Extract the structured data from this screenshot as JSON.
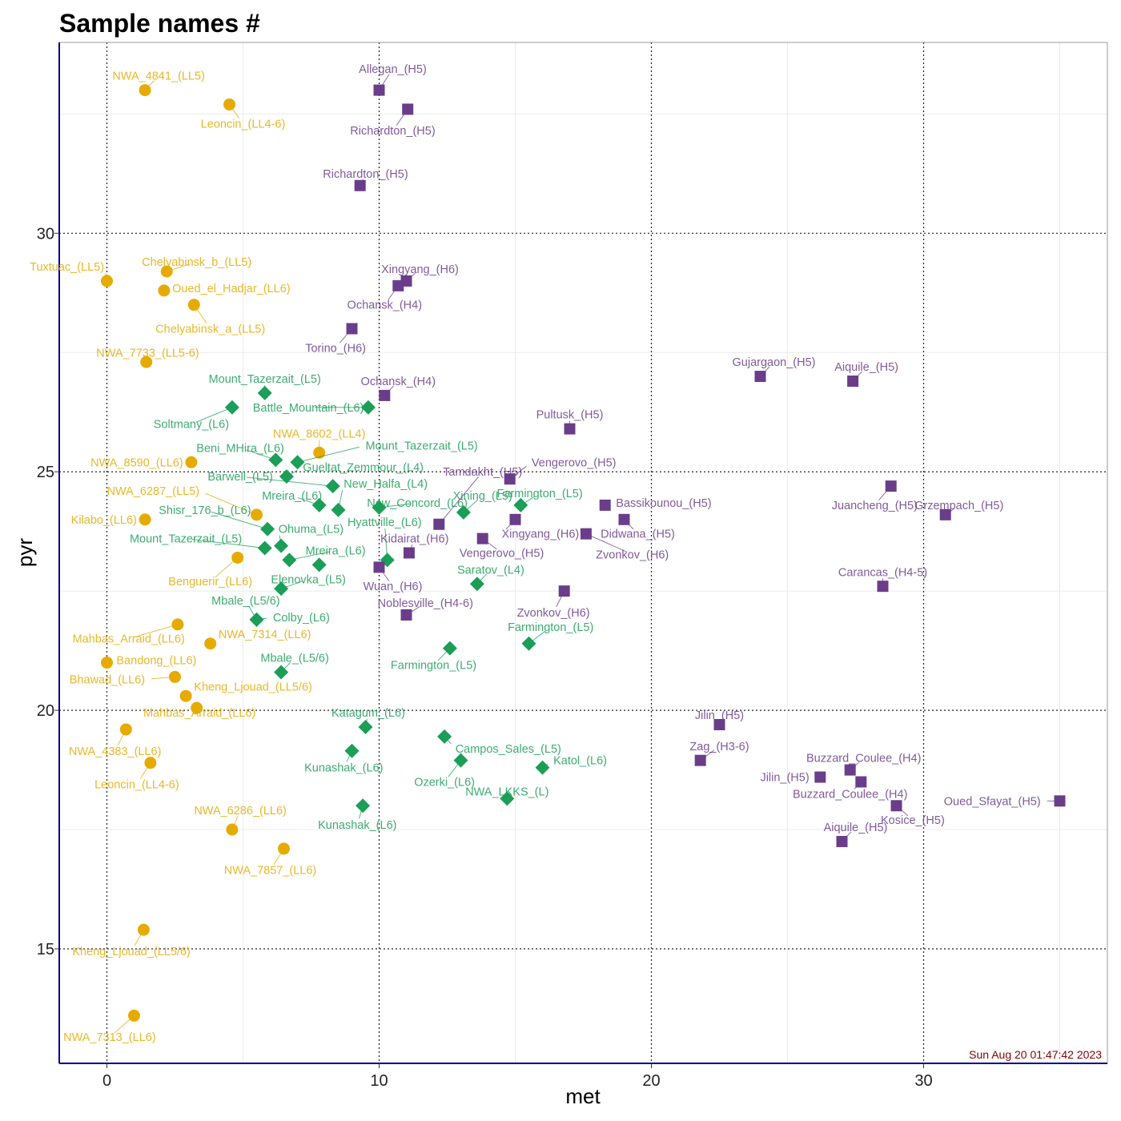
{
  "chart_data": {
    "type": "scatter",
    "title": "Sample names #",
    "xlabel": "met",
    "ylabel": "pyr",
    "xlim": [
      -1.75,
      36.75
    ],
    "ylim": [
      12.6,
      34.0
    ],
    "xticks": [
      0,
      10,
      20,
      30
    ],
    "yticks": [
      15,
      20,
      25,
      30
    ],
    "grid": true,
    "timestamp": "Sun Aug 20 01:47:42 2023",
    "colors": {
      "LL": "#e6ab02",
      "L": "#1b9e57",
      "H": "#6a3d8a",
      "axis": "#00008b"
    },
    "series": [
      {
        "group": "LL",
        "marker": "circle",
        "points": [
          {
            "label": "NWA_4841_(LL5)",
            "x": 1.4,
            "y": 33.0,
            "lx": 1.9,
            "ly": 33.3,
            "ha": "middle"
          },
          {
            "label": "Leoncin_(LL4-6)",
            "x": 4.5,
            "y": 32.7,
            "lx": 5.0,
            "ly": 32.3,
            "ha": "middle"
          },
          {
            "label": "Tuxtuac_(LL5)",
            "x": 0.0,
            "y": 29.0,
            "lx": -0.1,
            "ly": 29.3,
            "ha": "end"
          },
          {
            "label": "Chelyabinsk_b_(LL5)",
            "x": 2.2,
            "y": 29.2,
            "lx": 3.3,
            "ly": 29.4,
            "ha": "middle"
          },
          {
            "label": "Oued_el_Hadjar_(LL6)",
            "x": 2.1,
            "y": 28.8,
            "lx": 2.4,
            "ly": 28.85,
            "ha": "start"
          },
          {
            "label": "Chelyabinsk_a_(LL5)",
            "x": 3.2,
            "y": 28.5,
            "lx": 3.8,
            "ly": 28.0,
            "ha": "middle"
          },
          {
            "label": "NWA_7733_(LL5-6)",
            "x": 1.45,
            "y": 27.3,
            "lx": 1.5,
            "ly": 27.5,
            "ha": "middle"
          },
          {
            "label": "NWA_8602_(LL4)",
            "x": 7.8,
            "y": 25.4,
            "lx": 7.8,
            "ly": 25.8,
            "ha": "middle"
          },
          {
            "label": "NWA_8590_(LL6)",
            "x": 3.1,
            "y": 25.2,
            "lx": 2.8,
            "ly": 25.2,
            "ha": "end"
          },
          {
            "label": "NWA_6287_(LL5)",
            "x": 5.5,
            "y": 24.1,
            "lx": 3.4,
            "ly": 24.6,
            "ha": "end"
          },
          {
            "label": "Kilabo_(LL6)",
            "x": 1.4,
            "y": 24.0,
            "lx": 1.1,
            "ly": 24.0,
            "ha": "end"
          },
          {
            "label": "Benguerir_(LL6)",
            "x": 4.8,
            "y": 23.2,
            "lx": 3.8,
            "ly": 22.7,
            "ha": "middle"
          },
          {
            "label": "Mahbas_Arraid_(LL6)",
            "x": 2.6,
            "y": 21.8,
            "lx": 0.8,
            "ly": 21.5,
            "ha": "middle"
          },
          {
            "label": "NWA_7314_(LL6)",
            "x": 3.8,
            "y": 21.4,
            "lx": 4.1,
            "ly": 21.6,
            "ha": "start"
          },
          {
            "label": "Bandong_(LL6)",
            "x": 0.0,
            "y": 21.0,
            "lx": 0.35,
            "ly": 21.05,
            "ha": "start"
          },
          {
            "label": "Bhawad_(LL6)",
            "x": 2.5,
            "y": 20.7,
            "lx": 1.4,
            "ly": 20.65,
            "ha": "end"
          },
          {
            "label": "Kheng_Ljouad_(LL5/6)",
            "x": 2.9,
            "y": 20.3,
            "lx": 3.2,
            "ly": 20.5,
            "ha": "start"
          },
          {
            "label": "Mahbas_Arraid_(LL6)",
            "x": 3.3,
            "y": 20.05,
            "lx": 3.4,
            "ly": 19.95,
            "ha": "middle"
          },
          {
            "label": "NWA_4383_(LL6)",
            "x": 0.7,
            "y": 19.6,
            "lx": 0.3,
            "ly": 19.15,
            "ha": "middle"
          },
          {
            "label": "Leoncin_(LL4-6)",
            "x": 1.6,
            "y": 18.9,
            "lx": 1.1,
            "ly": 18.45,
            "ha": "middle"
          },
          {
            "label": "NWA_6286_(LL6)",
            "x": 4.6,
            "y": 17.5,
            "lx": 4.9,
            "ly": 17.9,
            "ha": "middle"
          },
          {
            "label": "NWA_7857_(LL6)",
            "x": 6.5,
            "y": 17.1,
            "lx": 6.0,
            "ly": 16.65,
            "ha": "middle"
          },
          {
            "label": "Kheng_Ljouad_(LL5/6)",
            "x": 1.35,
            "y": 15.4,
            "lx": 0.9,
            "ly": 14.95,
            "ha": "middle"
          },
          {
            "label": "NWA_7313_(LL6)",
            "x": 1.0,
            "y": 13.6,
            "lx": 0.1,
            "ly": 13.15,
            "ha": "middle"
          }
        ]
      },
      {
        "group": "L",
        "marker": "diamond",
        "points": [
          {
            "label": "Mount_Tazerzait_(L5)",
            "x": 5.8,
            "y": 26.65,
            "lx": 5.8,
            "ly": 26.95,
            "ha": "middle"
          },
          {
            "label": "Soltmany_(L6)",
            "x": 4.6,
            "y": 26.35,
            "lx": 3.1,
            "ly": 26.0,
            "ha": "middle"
          },
          {
            "label": "Battle_Mountain_(L6)",
            "x": 9.6,
            "y": 26.35,
            "lx": 7.4,
            "ly": 26.35,
            "ha": "middle"
          },
          {
            "label": "Mount_Tazerzait_(L5)",
            "x": 7.0,
            "y": 25.2,
            "lx": 9.5,
            "ly": 25.55,
            "ha": "start"
          },
          {
            "label": "Beni_MHira_(L6)",
            "x": 6.2,
            "y": 25.25,
            "lx": 4.9,
            "ly": 25.5,
            "ha": "middle"
          },
          {
            "label": "Gueltat_Zemmour_(L4)",
            "x": 6.6,
            "y": 24.9,
            "lx": 7.2,
            "ly": 25.1,
            "ha": "start"
          },
          {
            "label": "Barwell_(L5)",
            "x": 8.3,
            "y": 24.7,
            "lx": 4.9,
            "ly": 24.9,
            "ha": "middle"
          },
          {
            "label": "New_Halfa_(L4)",
            "x": 8.5,
            "y": 24.2,
            "lx": 8.7,
            "ly": 24.75,
            "ha": "start"
          },
          {
            "label": "Mreira_(L6)",
            "x": 7.8,
            "y": 24.3,
            "lx": 6.8,
            "ly": 24.5,
            "ha": "middle"
          },
          {
            "label": "New_Concord_(L6)",
            "x": 10.0,
            "y": 24.25,
            "lx": 11.4,
            "ly": 24.35,
            "ha": "middle"
          },
          {
            "label": "Xining_(L5)",
            "x": 13.1,
            "y": 24.15,
            "lx": 13.8,
            "ly": 24.5,
            "ha": "middle"
          },
          {
            "label": "Farmington_(L5)",
            "x": 15.2,
            "y": 24.3,
            "lx": 15.9,
            "ly": 24.55,
            "ha": "middle"
          },
          {
            "label": "Shisr_176_b_(L6)",
            "x": 5.9,
            "y": 23.8,
            "lx": 3.6,
            "ly": 24.2,
            "ha": "middle"
          },
          {
            "label": "Ohuma_(L5)",
            "x": 6.4,
            "y": 23.45,
            "lx": 6.3,
            "ly": 23.8,
            "ha": "start"
          },
          {
            "label": "Hyattville_(L6)",
            "x": 10.3,
            "y": 23.15,
            "lx": 10.2,
            "ly": 23.95,
            "ha": "middle"
          },
          {
            "label": "Mount_Tazerzait_(L5)",
            "x": 5.8,
            "y": 23.4,
            "lx": 2.9,
            "ly": 23.6,
            "ha": "middle"
          },
          {
            "label": "Mreira_(L6)",
            "x": 6.7,
            "y": 23.15,
            "lx": 8.4,
            "ly": 23.35,
            "ha": "middle"
          },
          {
            "label": "Mreira_(L6)",
            "x": 7.8,
            "y": 23.05,
            "lx": 7.8,
            "ly": 23.05,
            "ha": "none"
          },
          {
            "label": "Elenovka_(L5)",
            "x": 6.4,
            "y": 22.55,
            "lx": 7.4,
            "ly": 22.75,
            "ha": "middle"
          },
          {
            "label": "Saratov_(L4)",
            "x": 13.6,
            "y": 22.65,
            "lx": 14.1,
            "ly": 22.95,
            "ha": "middle"
          },
          {
            "label": "Mbale_(L5/6)",
            "x": 5.5,
            "y": 21.9,
            "lx": 5.1,
            "ly": 22.3,
            "ha": "middle"
          },
          {
            "label": "Colby_(L6)",
            "x": 5.5,
            "y": 21.9,
            "lx": 6.1,
            "ly": 21.95,
            "ha": "start"
          },
          {
            "label": "Farmington_(L5)",
            "x": 15.5,
            "y": 21.4,
            "lx": 16.3,
            "ly": 21.75,
            "ha": "middle"
          },
          {
            "label": "Farmington_(L5)",
            "x": 12.6,
            "y": 21.3,
            "lx": 12.0,
            "ly": 20.95,
            "ha": "middle"
          },
          {
            "label": "Mbale_(L5/6)",
            "x": 6.4,
            "y": 20.8,
            "lx": 6.9,
            "ly": 21.1,
            "ha": "middle"
          },
          {
            "label": "Katagum_(L6)",
            "x": 9.5,
            "y": 19.65,
            "lx": 9.6,
            "ly": 19.95,
            "ha": "middle"
          },
          {
            "label": "Kunashak_(L6)",
            "x": 9.0,
            "y": 19.15,
            "lx": 8.7,
            "ly": 18.8,
            "ha": "middle"
          },
          {
            "label": "Campos_Sales_(L5)",
            "x": 12.4,
            "y": 19.45,
            "lx": 12.8,
            "ly": 19.2,
            "ha": "start"
          },
          {
            "label": "Ozerki_(L6)",
            "x": 13.0,
            "y": 18.95,
            "lx": 12.4,
            "ly": 18.5,
            "ha": "middle"
          },
          {
            "label": "Katol_(L6)",
            "x": 16.0,
            "y": 18.8,
            "lx": 16.4,
            "ly": 18.95,
            "ha": "start"
          },
          {
            "label": "NWA_LKKS_(L)",
            "x": 14.7,
            "y": 18.15,
            "lx": 14.7,
            "ly": 18.3,
            "ha": "middle"
          },
          {
            "label": "Kunashak_(L6)",
            "x": 9.4,
            "y": 18.0,
            "lx": 9.2,
            "ly": 17.6,
            "ha": "middle"
          }
        ]
      },
      {
        "group": "H",
        "marker": "square",
        "points": [
          {
            "label": "Allegan_(H5)",
            "x": 10.0,
            "y": 33.0,
            "lx": 10.5,
            "ly": 33.45,
            "ha": "middle"
          },
          {
            "label": "Richardton_(H5)",
            "x": 11.05,
            "y": 32.6,
            "lx": 10.5,
            "ly": 32.15,
            "ha": "middle"
          },
          {
            "label": "Richardton_(H5)",
            "x": 9.3,
            "y": 31.0,
            "lx": 9.5,
            "ly": 31.25,
            "ha": "middle"
          },
          {
            "label": "Xingyang_(H6)",
            "x": 11.0,
            "y": 29.0,
            "lx": 11.5,
            "ly": 29.25,
            "ha": "middle"
          },
          {
            "label": "Ochansk_(H4)",
            "x": 10.7,
            "y": 28.9,
            "lx": 10.2,
            "ly": 28.5,
            "ha": "middle"
          },
          {
            "label": "Torino_(H6)",
            "x": 9.0,
            "y": 28.0,
            "lx": 8.4,
            "ly": 27.6,
            "ha": "middle"
          },
          {
            "label": "Ochansk_(H4)",
            "x": 10.2,
            "y": 26.6,
            "lx": 10.7,
            "ly": 26.9,
            "ha": "middle"
          },
          {
            "label": "Gujargaon_(H5)",
            "x": 24.0,
            "y": 27.0,
            "lx": 24.5,
            "ly": 27.3,
            "ha": "middle"
          },
          {
            "label": "Aiquile_(H5)",
            "x": 27.4,
            "y": 26.9,
            "lx": 27.9,
            "ly": 27.2,
            "ha": "middle"
          },
          {
            "label": "Pultusk_(H5)",
            "x": 17.0,
            "y": 25.9,
            "lx": 17.0,
            "ly": 26.2,
            "ha": "middle"
          },
          {
            "label": "Vengerovo_(H5)",
            "x": 14.8,
            "y": 24.85,
            "lx": 15.6,
            "ly": 25.2,
            "ha": "start"
          },
          {
            "label": "Tamdakht_(H5)",
            "x": 12.2,
            "y": 23.9,
            "lx": 13.8,
            "ly": 25.0,
            "ha": "middle"
          },
          {
            "label": "Juancheng_(H5)",
            "x": 28.8,
            "y": 24.7,
            "lx": 28.2,
            "ly": 24.3,
            "ha": "middle"
          },
          {
            "label": "Grzempach_(H5)",
            "x": 30.8,
            "y": 24.1,
            "lx": 31.3,
            "ly": 24.3,
            "ha": "middle"
          },
          {
            "label": "Bassikounou_(H5)",
            "x": 18.3,
            "y": 24.3,
            "lx": 18.7,
            "ly": 24.35,
            "ha": "start"
          },
          {
            "label": "Kidairat_(H6)",
            "x": 11.1,
            "y": 23.3,
            "lx": 11.3,
            "ly": 23.6,
            "ha": "middle"
          },
          {
            "label": "Xingyang_(H6)",
            "x": 15.0,
            "y": 24.0,
            "lx": 14.5,
            "ly": 23.7,
            "ha": "start"
          },
          {
            "label": "Vengerovo_(H5)",
            "x": 13.8,
            "y": 23.6,
            "lx": 14.5,
            "ly": 23.3,
            "ha": "middle"
          },
          {
            "label": "Didwana_(H5)",
            "x": 19.0,
            "y": 24.0,
            "lx": 19.5,
            "ly": 23.7,
            "ha": "middle"
          },
          {
            "label": "Zvonkov_(H6)",
            "x": 17.6,
            "y": 23.7,
            "lx": 19.3,
            "ly": 23.27,
            "ha": "middle"
          },
          {
            "label": "Wuan_(H6)",
            "x": 10.0,
            "y": 23.0,
            "lx": 10.5,
            "ly": 22.6,
            "ha": "middle"
          },
          {
            "label": "Noblesville_(H4-6)",
            "x": 11.0,
            "y": 22.0,
            "lx": 11.7,
            "ly": 22.25,
            "ha": "middle"
          },
          {
            "label": "Zvonkov_(H6)",
            "x": 16.8,
            "y": 22.5,
            "lx": 16.4,
            "ly": 22.05,
            "ha": "middle"
          },
          {
            "label": "Carancas_(H4-5)",
            "x": 28.5,
            "y": 22.6,
            "lx": 28.5,
            "ly": 22.9,
            "ha": "middle"
          },
          {
            "label": "Jilin_(H5)",
            "x": 22.5,
            "y": 19.7,
            "lx": 22.5,
            "ly": 19.9,
            "ha": "middle"
          },
          {
            "label": "Zag_(H3-6)",
            "x": 21.8,
            "y": 18.95,
            "lx": 22.5,
            "ly": 19.25,
            "ha": "middle"
          },
          {
            "label": "Jilin_(H5)",
            "x": 26.2,
            "y": 18.6,
            "lx": 25.8,
            "ly": 18.6,
            "ha": "end"
          },
          {
            "label": "Buzzard_Coulee_(H4)",
            "x": 27.3,
            "y": 18.75,
            "lx": 27.8,
            "ly": 19.0,
            "ha": "middle"
          },
          {
            "label": "Buzzard_Coulee_(H4)",
            "x": 27.7,
            "y": 18.5,
            "lx": 27.3,
            "ly": 18.25,
            "ha": "middle"
          },
          {
            "label": "Kosice_(H5)",
            "x": 29.0,
            "y": 18.0,
            "lx": 29.6,
            "ly": 17.7,
            "ha": "middle"
          },
          {
            "label": "Oued_Sfayat_(H5)",
            "x": 35.0,
            "y": 18.1,
            "lx": 34.3,
            "ly": 18.1,
            "ha": "end"
          },
          {
            "label": "Aiquile_(H5)",
            "x": 27.0,
            "y": 17.25,
            "lx": 27.5,
            "ly": 17.55,
            "ha": "middle"
          }
        ]
      }
    ]
  }
}
